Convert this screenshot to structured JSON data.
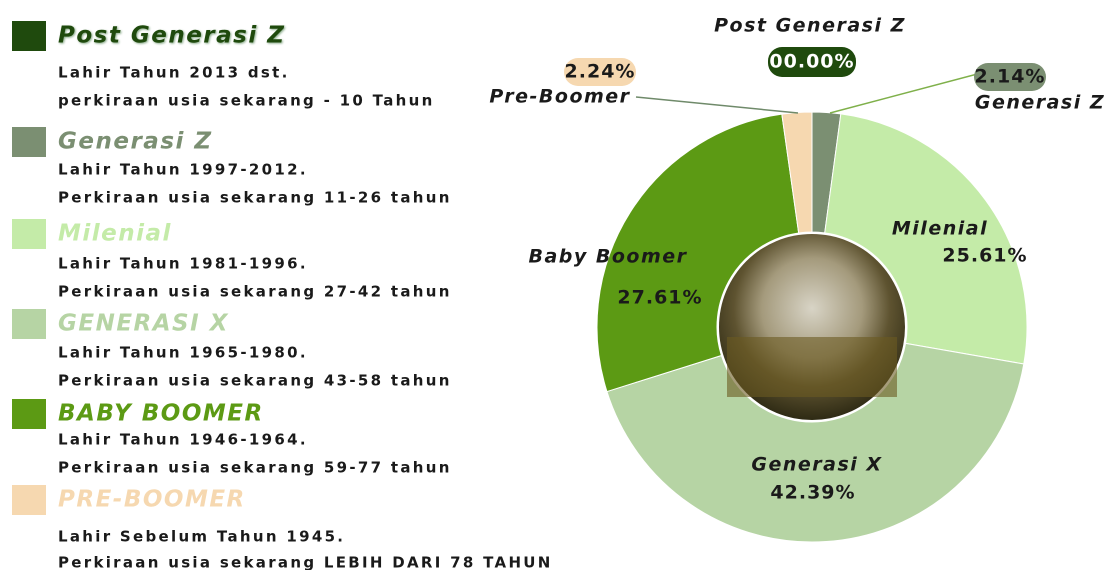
{
  "chart_data": {
    "type": "donut",
    "categories": [
      "Post Generasi Z",
      "Generasi Z",
      "Milenial",
      "Generasi X",
      "Baby Boomer",
      "Pre-Boomer"
    ],
    "values": [
      0.0,
      2.14,
      25.61,
      42.39,
      27.61,
      2.24
    ],
    "value_labels": [
      "00.00%",
      "2.14%",
      "25.61%",
      "42.39%",
      "27.61%",
      "2.24%"
    ],
    "colors": [
      "#1f4a0d",
      "#7b8f72",
      "#c4eba8",
      "#b6d4a4",
      "#5c9a14",
      "#f6d8b0"
    ]
  },
  "legend": [
    {
      "title": "Post Generasi Z",
      "lines": [
        "Lahir Tahun 2013 dst.",
        "perkiraan usia sekarang - 10 Tahun"
      ]
    },
    {
      "title": "Generasi Z",
      "lines": [
        "Lahir Tahun 1997-2012.",
        "Perkiraan usia sekarang 11-26 tahun"
      ]
    },
    {
      "title": "Milenial",
      "lines": [
        "Lahir Tahun 1981-1996.",
        "Perkiraan usia sekarang 27-42 tahun"
      ]
    },
    {
      "title": "GENERASI X",
      "lines": [
        "Lahir Tahun 1965-1980.",
        "Perkiraan usia sekarang 43-58 tahun"
      ]
    },
    {
      "title": "BABY BOOMER",
      "lines": [
        "Lahir Tahun 1946-1964.",
        "Perkiraan usia sekarang 59-77 tahun"
      ]
    },
    {
      "title": "PRE-BOOMER",
      "lines": [
        "Lahir Sebelum Tahun 1945.",
        "Perkiraan usia sekarang LEBIH DARI 78 TAHUN"
      ]
    }
  ]
}
